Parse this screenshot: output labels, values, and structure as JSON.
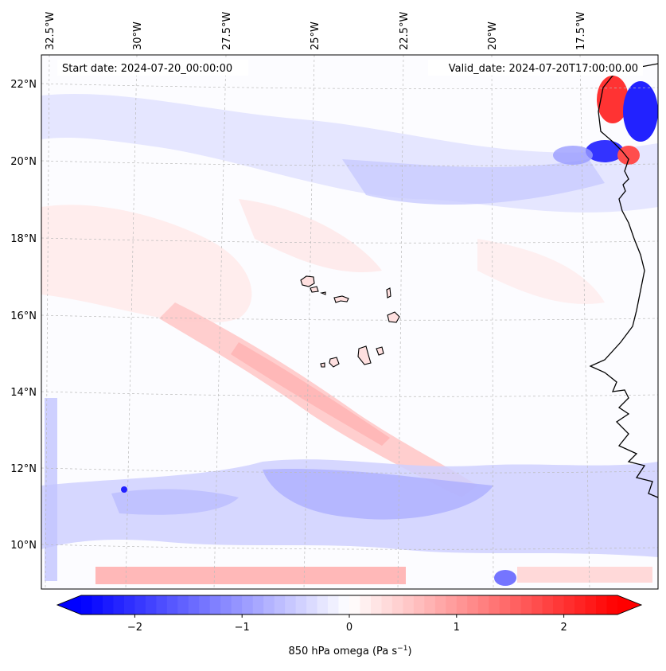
{
  "map": {
    "start_label": "Start date: 2024-07-20_00:00:00",
    "valid_label": "Valid_date: 2024-07-20T17:00:00.00",
    "lon_labels": [
      "32.5°W",
      "30°W",
      "27.5°W",
      "25°W",
      "22.5°W",
      "20°W",
      "17.5°W"
    ],
    "lat_labels": [
      "22°N",
      "20°N",
      "18°N",
      "16°N",
      "14°N",
      "12°N",
      "10°N"
    ]
  },
  "colorbar": {
    "field_name": "850 hPa omega",
    "units": "(Pa s",
    "units_exponent": "−1",
    "units_close": ")",
    "ticks": [
      "−2",
      "−1",
      "0",
      "1",
      "2"
    ],
    "range": [
      -2.5,
      2.5
    ],
    "tick_values": [
      -2,
      -1,
      0,
      1,
      2
    ],
    "colors": {
      "min": "#0000ff",
      "mid": "#ffffff",
      "max": "#ff0000"
    }
  }
}
